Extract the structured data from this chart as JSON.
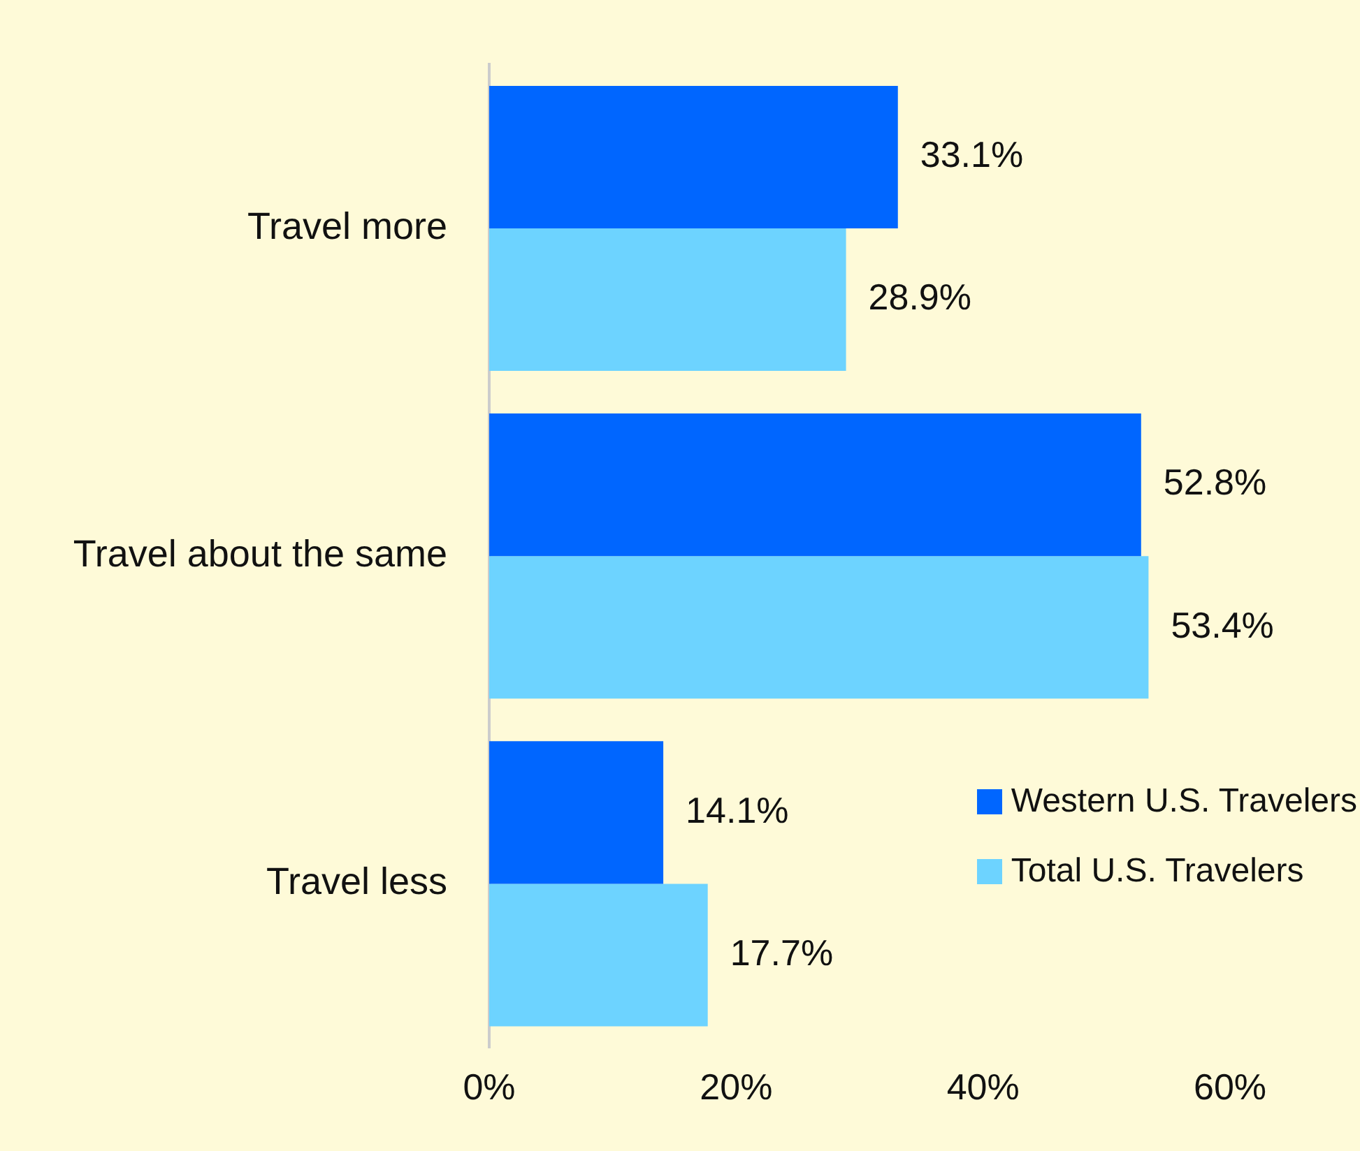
{
  "chart_data": {
    "type": "bar",
    "orientation": "horizontal",
    "categories": [
      "Travel more",
      "Travel about the same",
      "Travel less"
    ],
    "series": [
      {
        "name": "Western U.S. Travelers",
        "color": "#0066ff",
        "values": [
          33.1,
          52.8,
          14.1
        ],
        "value_labels": [
          "33.1%",
          "52.8%",
          "14.1%"
        ]
      },
      {
        "name": "Total U.S. Travelers",
        "color": "#6dd3ff",
        "values": [
          28.9,
          53.4,
          17.7
        ],
        "value_labels": [
          "28.9%",
          "53.4%",
          "17.7%"
        ]
      }
    ],
    "xlim": [
      0,
      60
    ],
    "xticks": [
      {
        "value": 0,
        "label": "0%"
      },
      {
        "value": 20,
        "label": "20%"
      },
      {
        "value": 40,
        "label": "40%"
      },
      {
        "value": 60,
        "label": "60%"
      }
    ],
    "grid": false,
    "legend": "bottom right"
  }
}
